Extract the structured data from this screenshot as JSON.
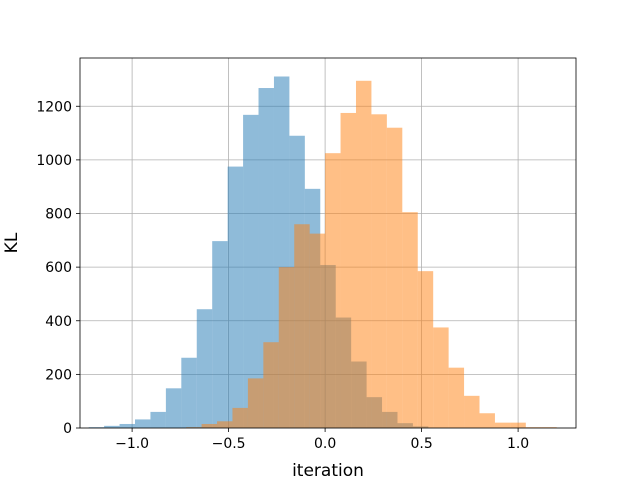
{
  "chart_data": {
    "type": "histogram",
    "xlabel": "iteration",
    "ylabel": "KL",
    "xlim": [
      -1.27,
      1.3
    ],
    "ylim": [
      0,
      1380
    ],
    "grid": true,
    "x_ticks": [
      -1.0,
      -0.5,
      0.0,
      0.5,
      1.0
    ],
    "x_tick_labels": [
      "−1.0",
      "−0.5",
      "0.0",
      "0.5",
      "1.0"
    ],
    "y_ticks": [
      0,
      200,
      400,
      600,
      800,
      1000,
      1200
    ],
    "y_tick_labels": [
      "0",
      "200",
      "400",
      "600",
      "800",
      "1000",
      "1200"
    ],
    "series": [
      {
        "color": "#1f77b4",
        "alpha": 0.5,
        "bins": [
          {
            "x0": -1.225,
            "x1": -1.145,
            "value": 3
          },
          {
            "x0": -1.145,
            "x1": -1.065,
            "value": 8
          },
          {
            "x0": -1.065,
            "x1": -0.985,
            "value": 15
          },
          {
            "x0": -0.985,
            "x1": -0.905,
            "value": 32
          },
          {
            "x0": -0.905,
            "x1": -0.825,
            "value": 60
          },
          {
            "x0": -0.825,
            "x1": -0.745,
            "value": 148
          },
          {
            "x0": -0.745,
            "x1": -0.665,
            "value": 262
          },
          {
            "x0": -0.665,
            "x1": -0.585,
            "value": 443
          },
          {
            "x0": -0.585,
            "x1": -0.505,
            "value": 697
          },
          {
            "x0": -0.505,
            "x1": -0.425,
            "value": 975
          },
          {
            "x0": -0.425,
            "x1": -0.345,
            "value": 1168
          },
          {
            "x0": -0.345,
            "x1": -0.265,
            "value": 1268
          },
          {
            "x0": -0.265,
            "x1": -0.185,
            "value": 1311
          },
          {
            "x0": -0.185,
            "x1": -0.105,
            "value": 1090
          },
          {
            "x0": -0.105,
            "x1": -0.025,
            "value": 892
          },
          {
            "x0": -0.025,
            "x1": 0.055,
            "value": 608
          },
          {
            "x0": 0.055,
            "x1": 0.135,
            "value": 412
          },
          {
            "x0": 0.135,
            "x1": 0.215,
            "value": 248
          },
          {
            "x0": 0.215,
            "x1": 0.295,
            "value": 115
          },
          {
            "x0": 0.295,
            "x1": 0.375,
            "value": 60
          },
          {
            "x0": 0.375,
            "x1": 0.455,
            "value": 18
          },
          {
            "x0": 0.455,
            "x1": 0.535,
            "value": 6
          }
        ]
      },
      {
        "color": "#ff7f0e",
        "alpha": 0.5,
        "bins": [
          {
            "x0": -0.72,
            "x1": -0.64,
            "value": 3
          },
          {
            "x0": -0.64,
            "x1": -0.56,
            "value": 15
          },
          {
            "x0": -0.56,
            "x1": -0.48,
            "value": 25
          },
          {
            "x0": -0.48,
            "x1": -0.4,
            "value": 75
          },
          {
            "x0": -0.4,
            "x1": -0.32,
            "value": 185
          },
          {
            "x0": -0.32,
            "x1": -0.24,
            "value": 320
          },
          {
            "x0": -0.24,
            "x1": -0.16,
            "value": 600
          },
          {
            "x0": -0.16,
            "x1": -0.08,
            "value": 760
          },
          {
            "x0": -0.08,
            "x1": 0.0,
            "value": 725
          },
          {
            "x0": 0.0,
            "x1": 0.08,
            "value": 1025
          },
          {
            "x0": 0.08,
            "x1": 0.16,
            "value": 1175
          },
          {
            "x0": 0.16,
            "x1": 0.24,
            "value": 1295
          },
          {
            "x0": 0.24,
            "x1": 0.32,
            "value": 1170
          },
          {
            "x0": 0.32,
            "x1": 0.4,
            "value": 1120
          },
          {
            "x0": 0.4,
            "x1": 0.48,
            "value": 805
          },
          {
            "x0": 0.48,
            "x1": 0.56,
            "value": 585
          },
          {
            "x0": 0.56,
            "x1": 0.64,
            "value": 375
          },
          {
            "x0": 0.64,
            "x1": 0.72,
            "value": 225
          },
          {
            "x0": 0.72,
            "x1": 0.8,
            "value": 120
          },
          {
            "x0": 0.8,
            "x1": 0.88,
            "value": 55
          },
          {
            "x0": 0.88,
            "x1": 0.96,
            "value": 20
          },
          {
            "x0": 0.96,
            "x1": 1.04,
            "value": 20
          },
          {
            "x0": 1.04,
            "x1": 1.12,
            "value": 3
          },
          {
            "x0": 1.12,
            "x1": 1.2,
            "value": 3
          }
        ]
      }
    ]
  }
}
